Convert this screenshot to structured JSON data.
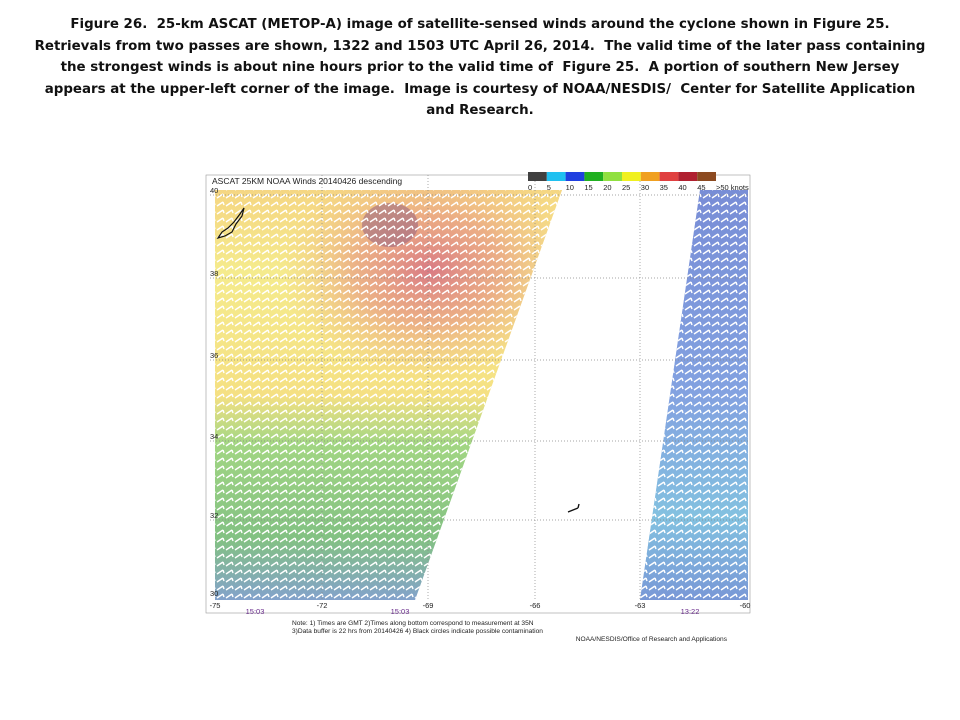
{
  "caption": {
    "lines": [
      "Figure 26.  25-km ASCAT (METOP-A) image of satellite-sensed winds around the cyclone shown in Figure 25.",
      "Retrievals from two passes are shown, 1322 and 1503 UTC April 26, 2014.  The valid time of the later pass containing",
      "the strongest winds is about nine hours prior to the valid time of  Figure 25.  A portion of southern New Jersey",
      "appears at the upper-left corner of the image.  Image is courtesy of NOAA/NESDIS/  Center for Satellite Application",
      "and Research."
    ]
  },
  "map": {
    "title": "ASCAT 25KM NOAA Winds 20140426 descending",
    "legend": {
      "labels": [
        "0",
        "5",
        "10",
        "15",
        "20",
        "25",
        "30",
        "35",
        "40",
        "45",
        ">50 knots"
      ],
      "colors": [
        "#404040",
        "#20c0f0",
        "#2040e0",
        "#20b020",
        "#90e040",
        "#f0f020",
        "#f0a020",
        "#e04040",
        "#b02030",
        "#8c4a20",
        "#8000a0"
      ]
    },
    "lat_labels": [
      "40",
      "38",
      "36",
      "34",
      "32",
      "30"
    ],
    "lon_labels": [
      "-75",
      "-72",
      "-69",
      "-66",
      "-63",
      "-60"
    ],
    "pass_times": [
      "15:03",
      "15:03",
      "13:22"
    ],
    "notes": [
      "Note: 1) Times are GMT 2)Times along bottom correspond to measurement at 35N",
      "3)Data buffer is 22 hrs from 20140426 4) Black circles indicate possible contamination",
      "NOAA/NESDIS/Office of Research and Applications"
    ]
  }
}
